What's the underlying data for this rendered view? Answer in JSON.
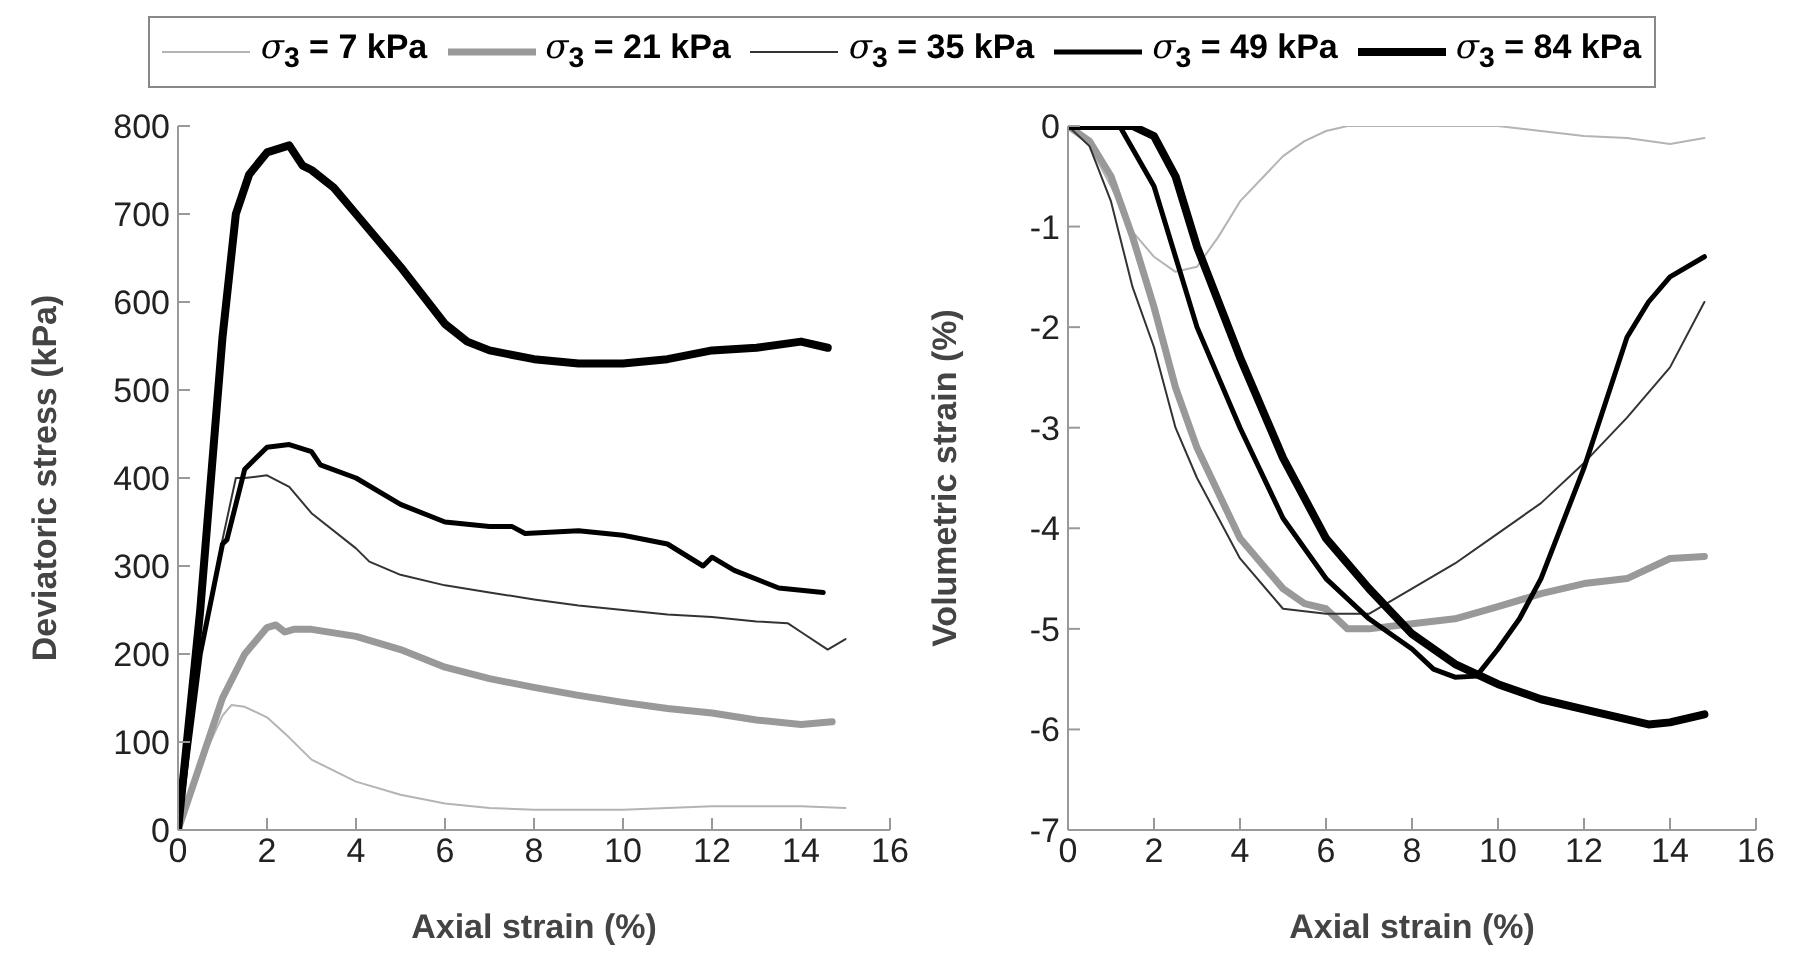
{
  "chart_data": [
    {
      "type": "line",
      "xlabel": "Axial strain (%)",
      "ylabel": "Deviatoric stress (kPa)",
      "xlim": [
        0,
        16
      ],
      "xticks": [
        0,
        2,
        4,
        6,
        8,
        10,
        12,
        14,
        16
      ],
      "ylim": [
        0,
        800
      ],
      "yticks": [
        0,
        100,
        200,
        300,
        400,
        500,
        600,
        700,
        800
      ],
      "grid": false,
      "legend": "top",
      "marker": "none",
      "line_style": "solid",
      "series": [
        {
          "name": "σ$_{3}$ = 7 kPa",
          "color": "#b4b4b4",
          "x": [
            0,
            0.5,
            1,
            1.2,
            1.5,
            2,
            2.5,
            3,
            4,
            5,
            6,
            7,
            8,
            10,
            12,
            14,
            15
          ],
          "values": [
            0,
            75,
            130,
            142,
            140,
            128,
            105,
            80,
            55,
            40,
            30,
            25,
            23,
            23,
            27,
            27,
            25
          ]
        },
        {
          "name": "σ$_{3}$ = 21 kPa",
          "color": "#999999",
          "x": [
            0,
            1,
            1.5,
            2,
            2.2,
            2.4,
            2.6,
            3,
            4,
            5,
            6,
            7,
            8,
            9,
            10,
            11,
            12,
            13,
            14,
            14.7
          ],
          "values": [
            0,
            150,
            200,
            230,
            233,
            225,
            228,
            228,
            220,
            205,
            185,
            172,
            162,
            153,
            145,
            138,
            133,
            125,
            120,
            123
          ]
        },
        {
          "name": "σ$_{3}$ = 35 kPa",
          "color": "#333333",
          "x": [
            0,
            0.5,
            1,
            1.3,
            1.5,
            2,
            2.5,
            3,
            4,
            4.3,
            5,
            6,
            7,
            8,
            9,
            10,
            11,
            12,
            13,
            13.7,
            14,
            14.6,
            15
          ],
          "values": [
            0,
            200,
            330,
            400,
            400,
            403,
            390,
            360,
            320,
            305,
            290,
            278,
            270,
            262,
            255,
            250,
            245,
            242,
            237,
            235,
            225,
            205,
            217
          ]
        },
        {
          "name": "σ$_{3}$ = 49 kPa",
          "color": "#000000",
          "x": [
            0,
            0.5,
            1,
            1.1,
            1.5,
            2,
            2.5,
            3,
            3.2,
            4,
            5,
            6,
            7,
            7.5,
            7.8,
            9,
            10,
            11,
            11.8,
            12,
            12.5,
            13.5,
            14.5
          ],
          "values": [
            0,
            200,
            325,
            330,
            410,
            435,
            438,
            430,
            415,
            400,
            370,
            350,
            345,
            345,
            337,
            340,
            335,
            325,
            300,
            310,
            295,
            275,
            270
          ]
        },
        {
          "name": "σ$_{3}$ = 84 kPa",
          "color": "#000000",
          "x": [
            0,
            0.5,
            1,
            1.3,
            1.6,
            2,
            2.5,
            2.8,
            3,
            3.5,
            4,
            5,
            6,
            6.5,
            7,
            8,
            9,
            10,
            11,
            12,
            13,
            14,
            14.6
          ],
          "values": [
            0,
            250,
            560,
            700,
            745,
            770,
            778,
            755,
            750,
            730,
            700,
            640,
            575,
            555,
            545,
            535,
            530,
            530,
            535,
            545,
            548,
            555,
            548
          ]
        }
      ]
    },
    {
      "type": "line",
      "xlabel": "Axial strain (%)",
      "ylabel": "Volumetric strain (%)",
      "xlim": [
        0,
        16
      ],
      "xticks": [
        0,
        2,
        4,
        6,
        8,
        10,
        12,
        14,
        16
      ],
      "ylim": [
        -7,
        0
      ],
      "yticks": [
        -7,
        -6,
        -5,
        -4,
        -3,
        -2,
        -1,
        0
      ],
      "grid": false,
      "marker": "none",
      "line_style": "solid",
      "series": [
        {
          "color": "#b4b4b4",
          "x": [
            0,
            0.5,
            1,
            1.5,
            2,
            2.5,
            3,
            3.5,
            4,
            5,
            5.5,
            6,
            6.5,
            10,
            11,
            12,
            13,
            14,
            14.8
          ],
          "values": [
            0,
            -0.2,
            -0.6,
            -1.05,
            -1.3,
            -1.45,
            -1.4,
            -1.1,
            -0.75,
            -0.3,
            -0.15,
            -0.05,
            0,
            0,
            -0.05,
            -0.1,
            -0.12,
            -0.18,
            -0.12
          ]
        },
        {
          "color": "#999999",
          "x": [
            0,
            0.5,
            1,
            1.5,
            2,
            2.5,
            3,
            4,
            5,
            5.5,
            6,
            6.5,
            7,
            8,
            9,
            10,
            11,
            12,
            13,
            14,
            14.8
          ],
          "values": [
            0,
            -0.15,
            -0.5,
            -1.1,
            -1.8,
            -2.6,
            -3.2,
            -4.1,
            -4.6,
            -4.75,
            -4.8,
            -5,
            -5,
            -4.95,
            -4.9,
            -4.78,
            -4.65,
            -4.55,
            -4.5,
            -4.3,
            -4.28
          ]
        },
        {
          "color": "#333333",
          "x": [
            0,
            0.5,
            1,
            1.5,
            2,
            2.5,
            3,
            4,
            5,
            6,
            7,
            8,
            9,
            10,
            11,
            12,
            13,
            14,
            14.8
          ],
          "values": [
            0,
            -0.2,
            -0.75,
            -1.6,
            -2.2,
            -3,
            -3.5,
            -4.3,
            -4.8,
            -4.85,
            -4.85,
            -4.6,
            -4.35,
            -4.05,
            -3.75,
            -3.35,
            -2.9,
            -2.4,
            -1.75
          ]
        },
        {
          "color": "#000000",
          "x": [
            0,
            1.2,
            2,
            2.5,
            3,
            4,
            5,
            6,
            7,
            8,
            8.5,
            9,
            9.5,
            10,
            10.5,
            11,
            12,
            13,
            13.5,
            14,
            14.8
          ],
          "values": [
            0,
            0,
            -0.6,
            -1.3,
            -2,
            -3,
            -3.9,
            -4.5,
            -4.9,
            -5.2,
            -5.4,
            -5.48,
            -5.47,
            -5.2,
            -4.9,
            -4.5,
            -3.4,
            -2.1,
            -1.75,
            -1.5,
            -1.3
          ]
        },
        {
          "color": "#000000",
          "x": [
            0,
            1.5,
            2,
            2.5,
            3,
            4,
            5,
            6,
            7,
            8,
            9,
            10,
            11,
            12,
            13,
            13.5,
            14,
            14.8
          ],
          "values": [
            0,
            0,
            -0.1,
            -0.5,
            -1.2,
            -2.3,
            -3.3,
            -4.1,
            -4.6,
            -5.05,
            -5.35,
            -5.55,
            -5.7,
            -5.8,
            -5.9,
            -5.95,
            -5.93,
            -5.85
          ]
        }
      ]
    }
  ]
}
